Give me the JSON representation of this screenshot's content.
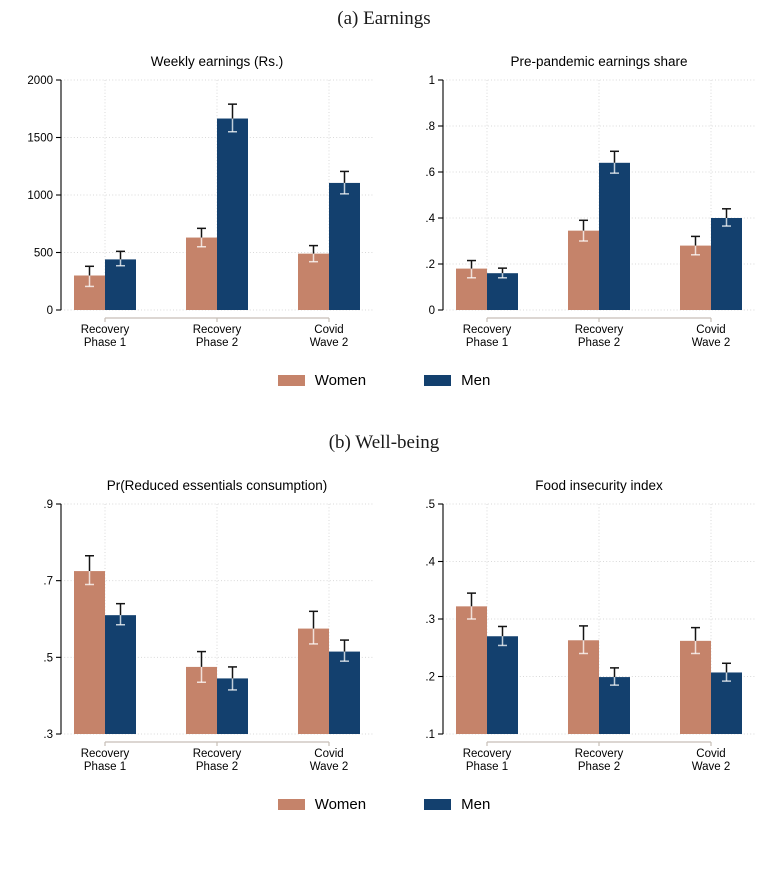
{
  "panels": [
    {
      "title": "(a) Earnings"
    },
    {
      "title": "(b) Well-being"
    }
  ],
  "legend": {
    "items": [
      {
        "label": "Women",
        "color": "#c5836a"
      },
      {
        "label": "Men",
        "color": "#13406e"
      }
    ]
  },
  "chart_data": [
    {
      "type": "bar",
      "panel": "(a) Earnings",
      "title": "Weekly earnings (Rs.)",
      "categories": [
        "Recovery\nPhase 1",
        "Recovery\nPhase 2",
        "Covid\nWave 2"
      ],
      "ylim": [
        0,
        2000
      ],
      "yticks": [
        0,
        500,
        1000,
        1500,
        2000
      ],
      "ytick_labels": [
        "0",
        "500",
        "1000",
        "1500",
        "2000"
      ],
      "grid": true,
      "legend_position": "bottom",
      "series": [
        {
          "name": "Women",
          "color": "#c5836a",
          "values": [
            300,
            630,
            490
          ],
          "ci_low": [
            205,
            550,
            420
          ],
          "ci_high": [
            380,
            710,
            560
          ]
        },
        {
          "name": "Men",
          "color": "#13406e",
          "values": [
            440,
            1665,
            1105
          ],
          "ci_low": [
            385,
            1550,
            1010
          ],
          "ci_high": [
            510,
            1790,
            1205
          ]
        }
      ]
    },
    {
      "type": "bar",
      "panel": "(a) Earnings",
      "title": "Pre-pandemic earnings share",
      "categories": [
        "Recovery\nPhase 1",
        "Recovery\nPhase 2",
        "Covid\nWave 2"
      ],
      "ylim": [
        0,
        1
      ],
      "yticks": [
        0,
        0.2,
        0.4,
        0.6,
        0.8,
        1
      ],
      "ytick_labels": [
        "0",
        ".2",
        ".4",
        ".6",
        ".8",
        "1"
      ],
      "grid": true,
      "legend_position": "bottom",
      "series": [
        {
          "name": "Women",
          "color": "#c5836a",
          "values": [
            0.18,
            0.345,
            0.28
          ],
          "ci_low": [
            0.14,
            0.3,
            0.24
          ],
          "ci_high": [
            0.215,
            0.39,
            0.32
          ]
        },
        {
          "name": "Men",
          "color": "#13406e",
          "values": [
            0.16,
            0.64,
            0.4
          ],
          "ci_low": [
            0.14,
            0.595,
            0.365
          ],
          "ci_high": [
            0.182,
            0.69,
            0.44
          ]
        }
      ]
    },
    {
      "type": "bar",
      "panel": "(b) Well-being",
      "title": "Pr(Reduced essentials consumption)",
      "categories": [
        "Recovery\nPhase 1",
        "Recovery\nPhase 2",
        "Covid\nWave 2"
      ],
      "ylim": [
        0.3,
        0.9
      ],
      "yticks": [
        0.3,
        0.5,
        0.7,
        0.9
      ],
      "ytick_labels": [
        ".3",
        ".5",
        ".7",
        ".9"
      ],
      "grid": true,
      "legend_position": "bottom",
      "series": [
        {
          "name": "Women",
          "color": "#c5836a",
          "values": [
            0.725,
            0.475,
            0.575
          ],
          "ci_low": [
            0.69,
            0.435,
            0.535
          ],
          "ci_high": [
            0.765,
            0.515,
            0.62
          ]
        },
        {
          "name": "Men",
          "color": "#13406e",
          "values": [
            0.61,
            0.445,
            0.515
          ],
          "ci_low": [
            0.585,
            0.415,
            0.49
          ],
          "ci_high": [
            0.64,
            0.475,
            0.545
          ]
        }
      ]
    },
    {
      "type": "bar",
      "panel": "(b) Well-being",
      "title": "Food insecurity index",
      "categories": [
        "Recovery\nPhase 1",
        "Recovery\nPhase 2",
        "Covid\nWave 2"
      ],
      "ylim": [
        0.1,
        0.5
      ],
      "yticks": [
        0.1,
        0.2,
        0.3,
        0.4,
        0.5
      ],
      "ytick_labels": [
        ".1",
        ".2",
        ".3",
        ".4",
        ".5"
      ],
      "grid": true,
      "legend_position": "bottom",
      "series": [
        {
          "name": "Women",
          "color": "#c5836a",
          "values": [
            0.322,
            0.263,
            0.262
          ],
          "ci_low": [
            0.3,
            0.24,
            0.24
          ],
          "ci_high": [
            0.345,
            0.288,
            0.285
          ]
        },
        {
          "name": "Men",
          "color": "#13406e",
          "values": [
            0.27,
            0.199,
            0.207
          ],
          "ci_low": [
            0.254,
            0.185,
            0.192
          ],
          "ci_high": [
            0.287,
            0.215,
            0.223
          ]
        }
      ]
    }
  ]
}
